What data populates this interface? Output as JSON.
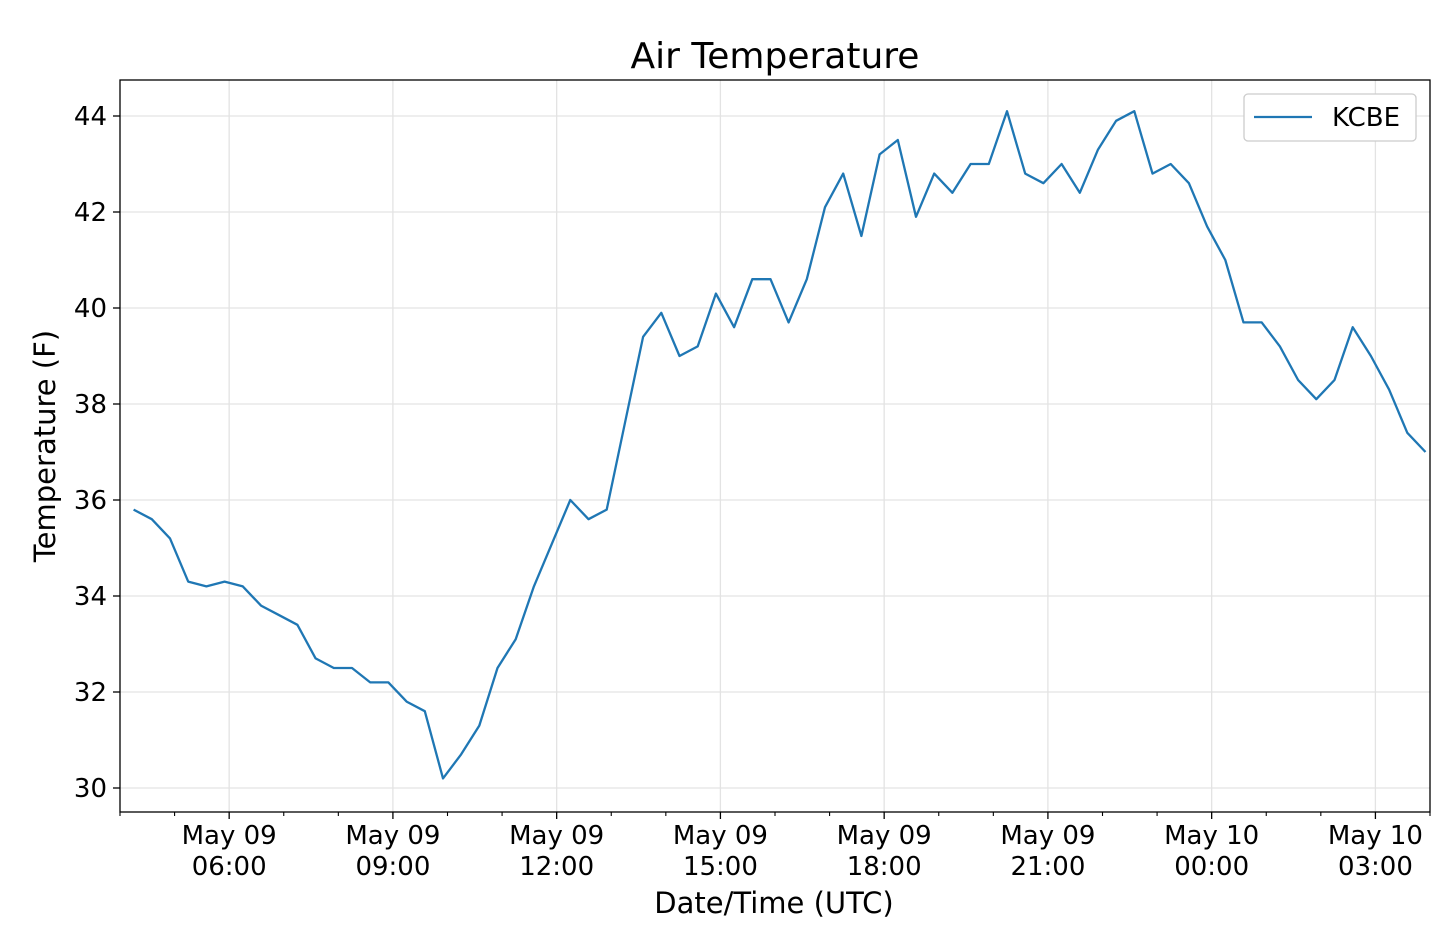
{
  "chart_data": {
    "type": "line",
    "title": "Air Temperature",
    "xlabel": "Date/Time (UTC)",
    "ylabel": "Temperature (F)",
    "ylim": [
      29.5,
      44.75
    ],
    "xlim": [
      "2019-05-09 04:00",
      "2019-05-10 04:00"
    ],
    "y_ticks": [
      30,
      32,
      34,
      36,
      38,
      40,
      42,
      44
    ],
    "x_ticks": [
      {
        "time": "2019-05-09 06:00",
        "label": [
          "May 09",
          "06:00"
        ]
      },
      {
        "time": "2019-05-09 09:00",
        "label": [
          "May 09",
          "09:00"
        ]
      },
      {
        "time": "2019-05-09 12:00",
        "label": [
          "May 09",
          "12:00"
        ]
      },
      {
        "time": "2019-05-09 15:00",
        "label": [
          "May 09",
          "15:00"
        ]
      },
      {
        "time": "2019-05-09 18:00",
        "label": [
          "May 09",
          "18:00"
        ]
      },
      {
        "time": "2019-05-09 21:00",
        "label": [
          "May 09",
          "21:00"
        ]
      },
      {
        "time": "2019-05-10 00:00",
        "label": [
          "May 10",
          "00:00"
        ]
      },
      {
        "time": "2019-05-10 03:00",
        "label": [
          "May 10",
          "03:00"
        ]
      }
    ],
    "minor_x_ticks": [
      "2019-05-09 04:00",
      "2019-05-09 05:00",
      "2019-05-09 07:00",
      "2019-05-09 08:00",
      "2019-05-09 10:00",
      "2019-05-09 11:00",
      "2019-05-09 13:00",
      "2019-05-09 14:00",
      "2019-05-09 16:00",
      "2019-05-09 17:00",
      "2019-05-09 19:00",
      "2019-05-09 20:00",
      "2019-05-09 22:00",
      "2019-05-09 23:00",
      "2019-05-10 01:00",
      "2019-05-10 02:00",
      "2019-05-10 04:00"
    ],
    "grid": true,
    "legend_position": "top-right",
    "series": [
      {
        "name": "KCBE",
        "color": "#1f77b4",
        "x": [
          "2019-05-09 04:15",
          "2019-05-09 04:35",
          "2019-05-09 04:55",
          "2019-05-09 05:15",
          "2019-05-09 05:35",
          "2019-05-09 05:55",
          "2019-05-09 06:15",
          "2019-05-09 06:35",
          "2019-05-09 06:55",
          "2019-05-09 07:15",
          "2019-05-09 07:35",
          "2019-05-09 07:55",
          "2019-05-09 08:15",
          "2019-05-09 08:35",
          "2019-05-09 08:55",
          "2019-05-09 09:15",
          "2019-05-09 09:35",
          "2019-05-09 09:55",
          "2019-05-09 10:15",
          "2019-05-09 10:35",
          "2019-05-09 10:55",
          "2019-05-09 11:15",
          "2019-05-09 11:35",
          "2019-05-09 11:55",
          "2019-05-09 12:15",
          "2019-05-09 12:35",
          "2019-05-09 12:55",
          "2019-05-09 13:15",
          "2019-05-09 13:35",
          "2019-05-09 13:55",
          "2019-05-09 14:15",
          "2019-05-09 14:35",
          "2019-05-09 14:55",
          "2019-05-09 15:15",
          "2019-05-09 15:35",
          "2019-05-09 15:55",
          "2019-05-09 16:15",
          "2019-05-09 16:35",
          "2019-05-09 16:55",
          "2019-05-09 17:15",
          "2019-05-09 17:35",
          "2019-05-09 17:55",
          "2019-05-09 18:15",
          "2019-05-09 18:35",
          "2019-05-09 18:55",
          "2019-05-09 19:15",
          "2019-05-09 19:35",
          "2019-05-09 19:55",
          "2019-05-09 20:15",
          "2019-05-09 20:35",
          "2019-05-09 20:55",
          "2019-05-09 21:15",
          "2019-05-09 21:35",
          "2019-05-09 21:55",
          "2019-05-09 22:15",
          "2019-05-09 22:35",
          "2019-05-09 22:55",
          "2019-05-09 23:15",
          "2019-05-09 23:35",
          "2019-05-09 23:55",
          "2019-05-10 00:15",
          "2019-05-10 00:35",
          "2019-05-10 00:55",
          "2019-05-10 01:15",
          "2019-05-10 01:35",
          "2019-05-10 01:55",
          "2019-05-10 02:15",
          "2019-05-10 02:35",
          "2019-05-10 02:55",
          "2019-05-10 03:15",
          "2019-05-10 03:35",
          "2019-05-10 03:55"
        ],
        "values": [
          35.8,
          35.6,
          35.2,
          34.3,
          34.2,
          34.3,
          34.2,
          33.8,
          33.6,
          33.4,
          32.7,
          32.5,
          32.5,
          32.2,
          32.2,
          31.8,
          31.6,
          30.2,
          30.7,
          31.3,
          32.5,
          33.1,
          34.2,
          35.1,
          36.0,
          35.6,
          35.8,
          37.6,
          39.4,
          39.9,
          39.0,
          39.2,
          40.3,
          39.6,
          40.6,
          40.6,
          39.7,
          40.6,
          42.1,
          42.8,
          41.5,
          43.2,
          43.5,
          41.9,
          42.8,
          42.4,
          43.0,
          43.0,
          44.1,
          42.8,
          42.6,
          43.0,
          42.4,
          43.3,
          43.9,
          44.1,
          42.8,
          43.0,
          42.6,
          41.7,
          41.0,
          39.7,
          39.7,
          39.2,
          38.5,
          38.1,
          38.5,
          39.6,
          39.0,
          38.3,
          37.4,
          37.0
        ]
      }
    ]
  }
}
